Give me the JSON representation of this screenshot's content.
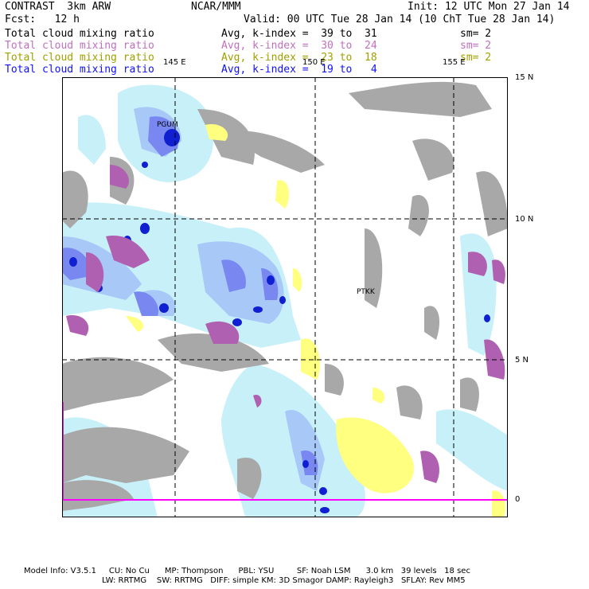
{
  "header": {
    "model": "CONTRAST  3km ARW",
    "org": "NCAR/MMM",
    "init": "Init: 12 UTC Mon 27 Jan 14",
    "fcst": "Fcst:   12 h",
    "valid": "Valid: 00 UTC Tue 28 Jan 14 (10 ChT Tue 28 Jan 14)"
  },
  "fields": [
    {
      "name": "Total cloud mixing ratio",
      "stat": "Avg, k-index =  39 to  31",
      "sm": "sm= 2",
      "color": "#000000"
    },
    {
      "name": "Total cloud mixing ratio",
      "stat": "Avg, k-index =  30 to  24",
      "sm": "sm= 2",
      "color": "#c070c0"
    },
    {
      "name": "Total cloud mixing ratio",
      "stat": "Avg, k-index =  23 to  18",
      "sm": "sm= 2",
      "color": "#a0a000"
    },
    {
      "name": "Total cloud mixing ratio",
      "stat": "Avg, k-index =  19 to   4",
      "sm": "",
      "color": "#1010ff"
    }
  ],
  "map": {
    "lon_labels": [
      "145 E",
      "150 E",
      "155 E"
    ],
    "lat_labels": [
      "15 N",
      "10 N",
      "5 N",
      "0"
    ],
    "stations": [
      "PGUM",
      "PTKK"
    ],
    "colors": {
      "gray": "#a8a8a8",
      "magenta": "#b060b0",
      "yellow": "#ffff80",
      "lightblue": "#c8f0f8",
      "midblue": "#a8c8f8",
      "blue": "#7888f0",
      "darkblue": "#1020d0",
      "axis_magenta": "#ff00ff"
    }
  },
  "footer": {
    "line1": "Model Info: V3.5.1     CU: No Cu      MP: Thompson      PBL: YSU         SF: Noah LSM      3.0 km   39 levels   18 sec",
    "line2": "LW: RRTMG    SW: RRTMG   DIFF: simple KM: 3D Smagor DAMP: Rayleigh3   SFLAY: Rev MM5"
  }
}
